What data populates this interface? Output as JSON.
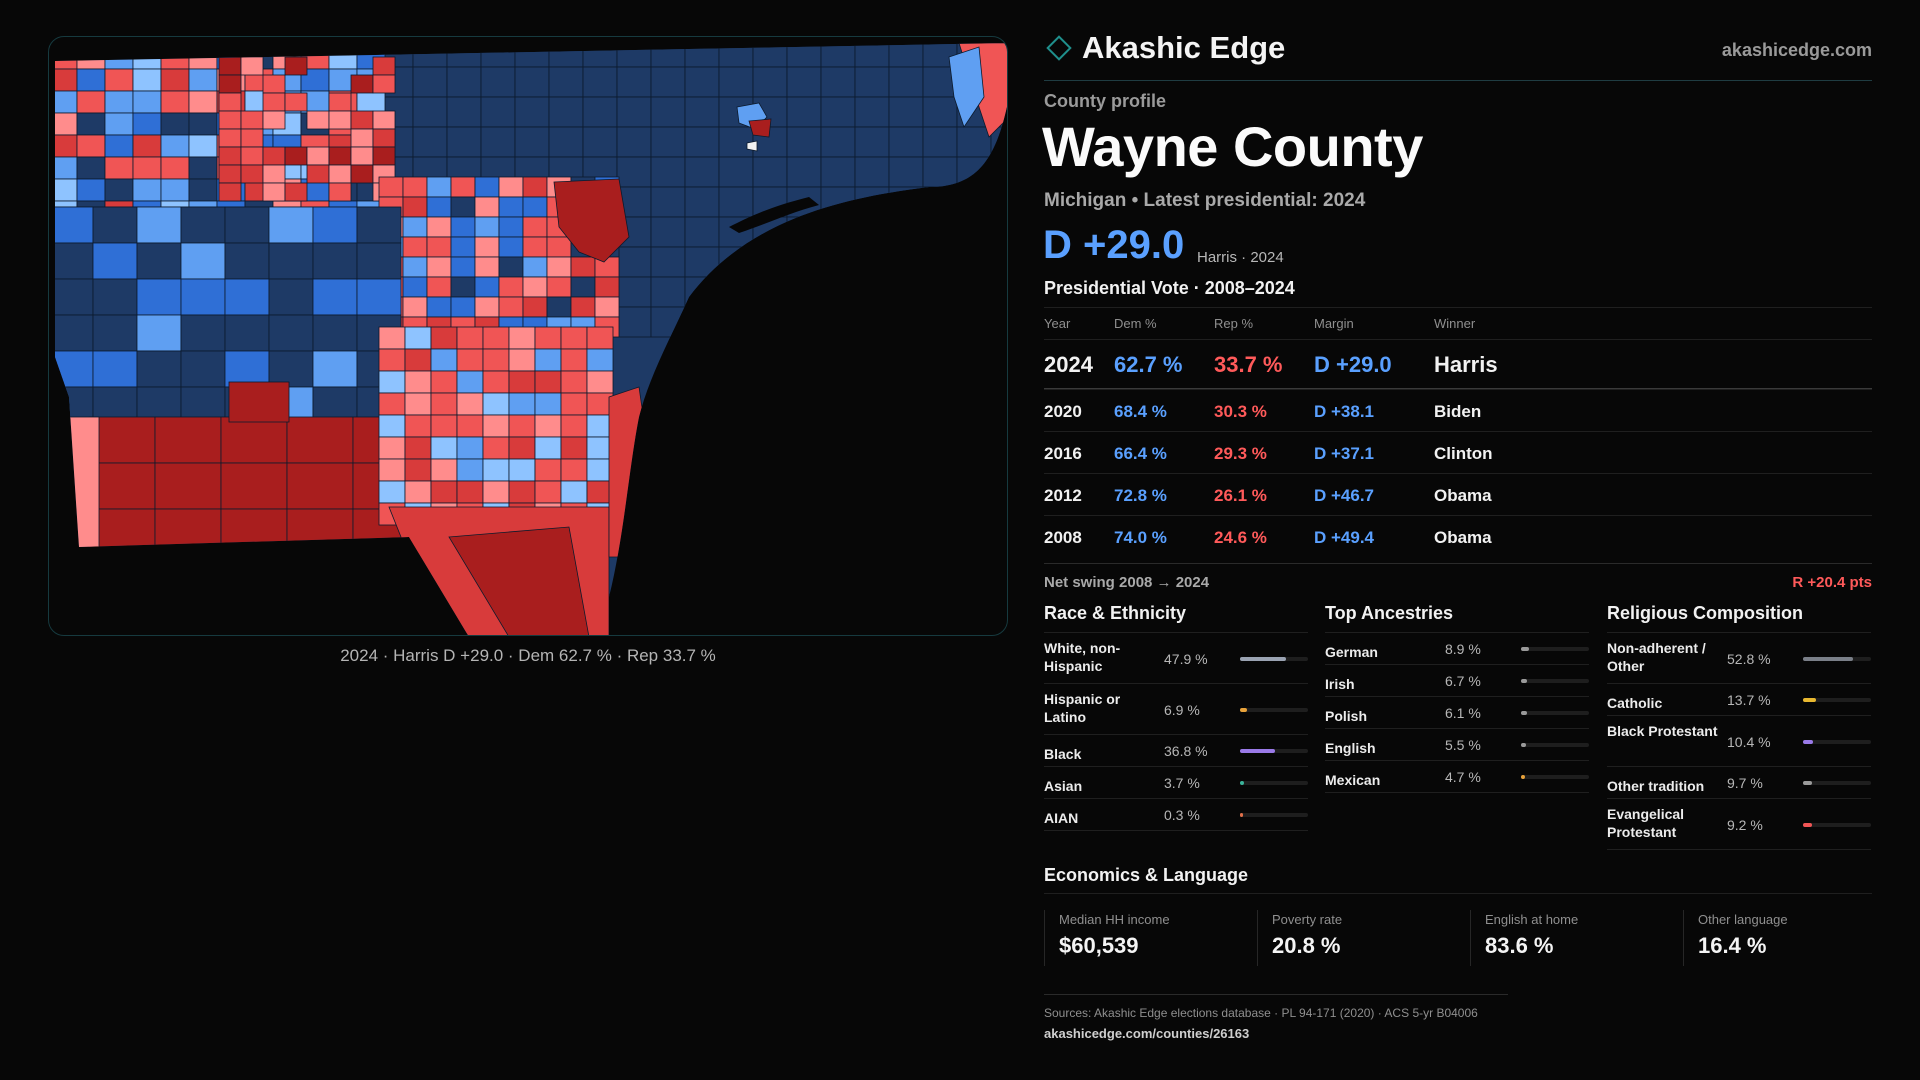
{
  "brand": {
    "name": "Akashic Edge",
    "url": "akashicedge.com"
  },
  "profile": {
    "label": "County profile",
    "title": "Wayne County",
    "subtitle": "Michigan • Latest presidential: 2024",
    "headline_margin": "D +29.0",
    "headline_winner": "Harris · 2024"
  },
  "map": {
    "caption": "2024 · Harris D +29.0 · Dem 62.7 % · Rep 33.7 %",
    "colors": {
      "dem_strong": "#1e3a66",
      "dem_medium": "#2f6fd6",
      "dem_light": "#5f9ff2",
      "dem_pale": "#8ec3ff",
      "rep_pale": "#ff8c8c",
      "rep_light": "#f05555",
      "rep_medium": "#d83b3b",
      "rep_strong": "#a91e1e",
      "border": "#0c1a2c",
      "panel_border": "#163a3f"
    }
  },
  "vote": {
    "title": "Presidential Vote · 2008–2024",
    "headers": {
      "year": "Year",
      "dem": "Dem %",
      "rep": "Rep %",
      "margin": "Margin",
      "winner": "Winner"
    },
    "rows": [
      {
        "year": "2024",
        "dem": "62.7 %",
        "rep": "33.7 %",
        "margin": "D +29.0",
        "winner": "Harris"
      },
      {
        "year": "2020",
        "dem": "68.4 %",
        "rep": "30.3 %",
        "margin": "D +38.1",
        "winner": "Biden"
      },
      {
        "year": "2016",
        "dem": "66.4 %",
        "rep": "29.3 %",
        "margin": "D +37.1",
        "winner": "Clinton"
      },
      {
        "year": "2012",
        "dem": "72.8 %",
        "rep": "26.1 %",
        "margin": "D +46.7",
        "winner": "Obama"
      },
      {
        "year": "2008",
        "dem": "74.0 %",
        "rep": "24.6 %",
        "margin": "D +49.4",
        "winner": "Obama"
      }
    ],
    "swing_label": "Net swing 2008 → 2024",
    "swing_value": "R +20.4 pts"
  },
  "race": {
    "title": "Race & Ethnicity",
    "items": [
      {
        "label": "White, non-Hispanic",
        "pct": "47.9 %",
        "share": 0.479,
        "color": "#9aa3b2"
      },
      {
        "label": "Hispanic or Latino",
        "pct": "6.9 %",
        "share": 0.069,
        "color": "#e8a23a"
      },
      {
        "label": "Black",
        "pct": "36.8 %",
        "share": 0.368,
        "color": "#9a7ae8"
      },
      {
        "label": "Asian",
        "pct": "3.7 %",
        "share": 0.037,
        "color": "#3ab39a"
      },
      {
        "label": "AIAN",
        "pct": "0.3 %",
        "share": 0.003,
        "color": "#e0704a"
      }
    ]
  },
  "ancestry": {
    "title": "Top Ancestries",
    "items": [
      {
        "label": "German",
        "pct": "8.9 %",
        "share": 0.089,
        "color": "#9a9a9a"
      },
      {
        "label": "Irish",
        "pct": "6.7 %",
        "share": 0.067,
        "color": "#9a9a9a"
      },
      {
        "label": "Polish",
        "pct": "6.1 %",
        "share": 0.061,
        "color": "#9a9a9a"
      },
      {
        "label": "English",
        "pct": "5.5 %",
        "share": 0.055,
        "color": "#9a9a9a"
      },
      {
        "label": "Mexican",
        "pct": "4.7 %",
        "share": 0.047,
        "color": "#e8a23a"
      }
    ]
  },
  "religion": {
    "title": "Religious Composition",
    "items": [
      {
        "label": "Non-adherent / Other",
        "pct": "52.8 %",
        "share": 0.528,
        "color": "#7a7f88"
      },
      {
        "label": "Catholic",
        "pct": "13.7 %",
        "share": 0.137,
        "color": "#e8b830"
      },
      {
        "label": "Black Protestant",
        "pct": "10.4 %",
        "share": 0.104,
        "color": "#9a7ae8"
      },
      {
        "label": "Other tradition",
        "pct": "9.7 %",
        "share": 0.097,
        "color": "#9a9a9a"
      },
      {
        "label": "Evangelical Protestant",
        "pct": "9.2 %",
        "share": 0.092,
        "color": "#f05555"
      }
    ]
  },
  "economics": {
    "title": "Economics & Language",
    "items": [
      {
        "label": "Median HH income",
        "value": "$60,539"
      },
      {
        "label": "Poverty rate",
        "value": "20.8 %"
      },
      {
        "label": "English at home",
        "value": "83.6 %"
      },
      {
        "label": "Other language",
        "value": "16.4 %"
      }
    ]
  },
  "footer": {
    "sources": "Sources: Akashic Edge elections database · PL 94-171 (2020) · ACS 5-yr B04006",
    "url": "akashicedge.com/counties/26163"
  }
}
